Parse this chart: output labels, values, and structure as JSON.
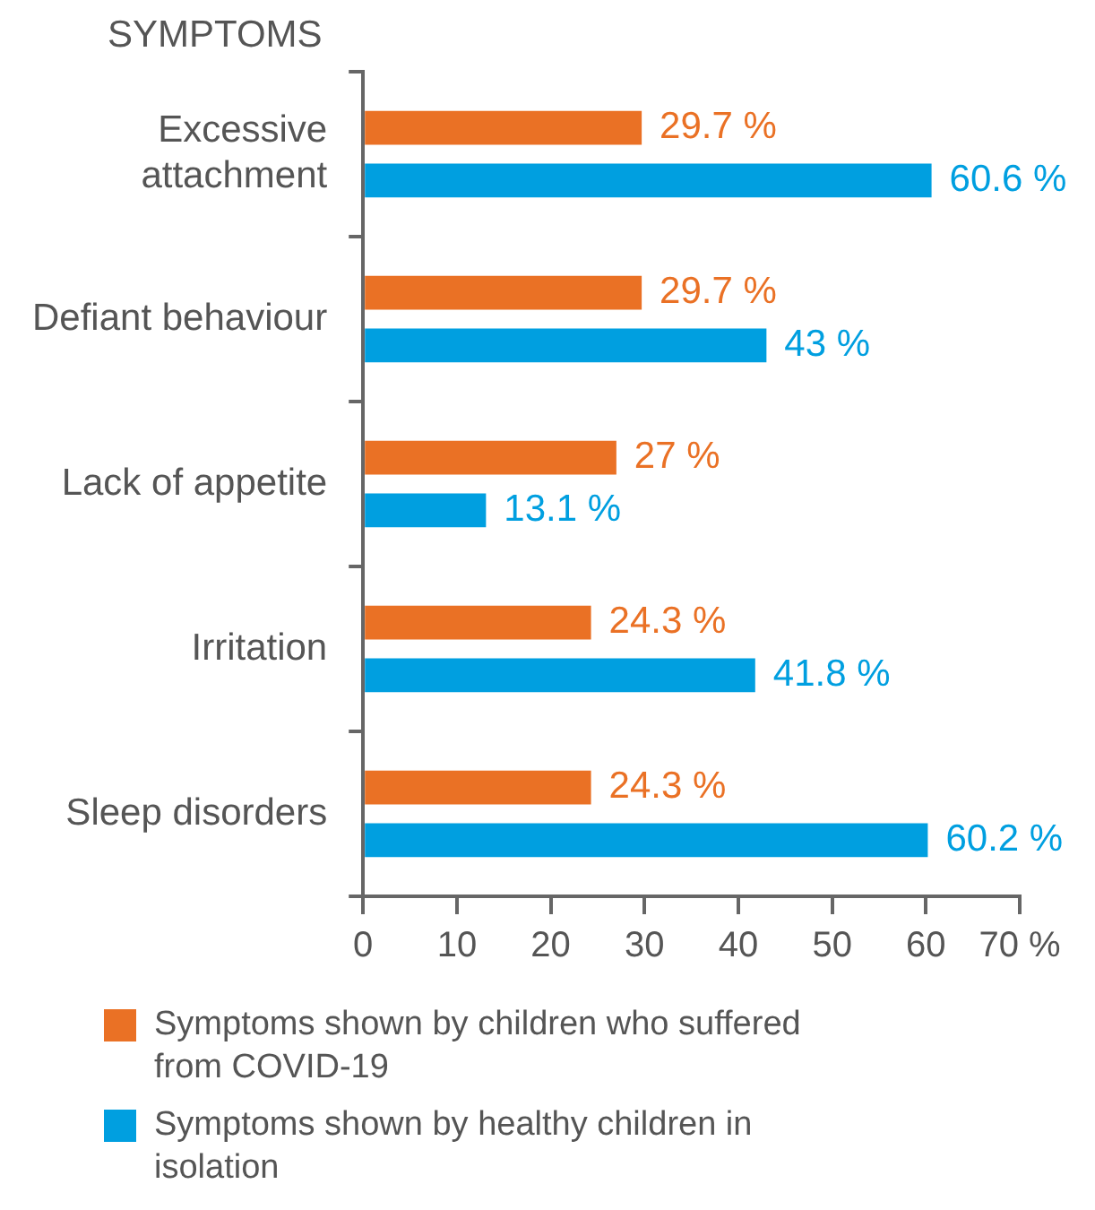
{
  "chart_data": {
    "type": "bar",
    "orientation": "horizontal",
    "ylabel": "SYMPTOMS",
    "categories": [
      "Excessive attachment",
      "Defiant behaviour",
      "Lack of appetite",
      "Irritation",
      "Sleep disorders"
    ],
    "series": [
      {
        "name": "Symptoms shown by children who suffered from COVID-19",
        "color": "#ea7125",
        "values": [
          29.7,
          29.7,
          27,
          24.3,
          24.3
        ],
        "value_labels": [
          "29.7 %",
          "29.7 %",
          "27 %",
          "24.3 %",
          "24.3 %"
        ]
      },
      {
        "name": "Symptoms shown by healthy children in isolation",
        "color": "#009fe0",
        "values": [
          60.6,
          43,
          13.1,
          41.8,
          60.2
        ],
        "value_labels": [
          "60.6 %",
          "43 %",
          "13.1 %",
          "41.8 %",
          "60.2 %"
        ]
      }
    ],
    "xlim": [
      0,
      70
    ],
    "xticks": [
      0,
      10,
      20,
      30,
      40,
      50,
      60,
      {
        "value": 70,
        "label": "70 %"
      }
    ],
    "grid": false,
    "legend": "bottom"
  }
}
